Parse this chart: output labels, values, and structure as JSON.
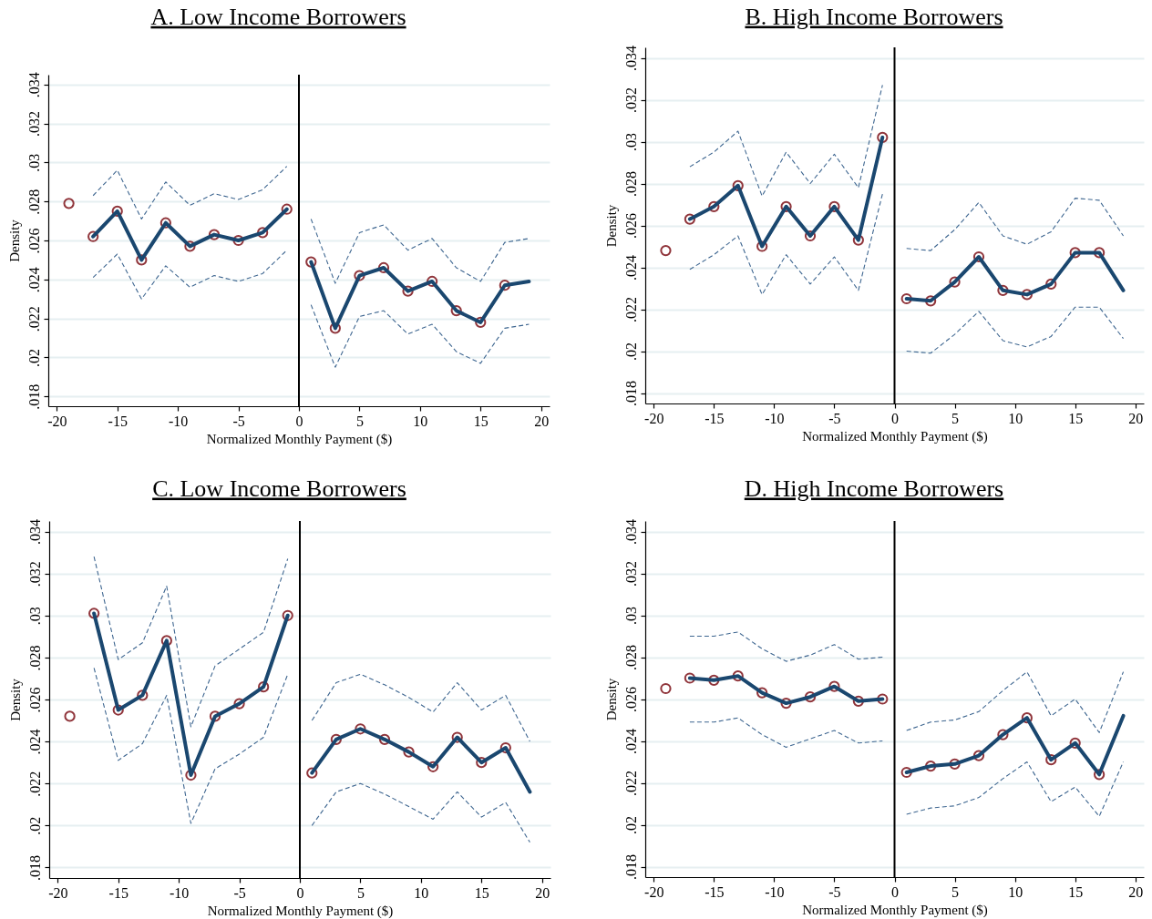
{
  "chart_data": [
    {
      "type": "line",
      "title": "A. Low Income Borrowers",
      "xlabel": "Normalized Monthly Payment ($)",
      "ylabel": "Density",
      "xlim": [
        -20.7,
        20.7
      ],
      "ylim": [
        0.0175,
        0.0345
      ],
      "xticks": [
        -20,
        -15,
        -10,
        -5,
        0,
        5,
        10,
        15,
        20
      ],
      "yticks": [
        {
          "value": 0.018,
          "label": ".018"
        },
        {
          "value": 0.02,
          "label": ".02"
        },
        {
          "value": 0.022,
          "label": ".022"
        },
        {
          "value": 0.024,
          "label": ".024"
        },
        {
          "value": 0.026,
          "label": ".026"
        },
        {
          "value": 0.028,
          "label": ".028"
        },
        {
          "value": 0.03,
          "label": ".03"
        },
        {
          "value": 0.032,
          "label": ".032"
        },
        {
          "value": 0.034,
          "label": ".034"
        }
      ],
      "grid": "y",
      "ref_lines": [
        {
          "axis": "x",
          "value": 0,
          "color": "#000000"
        }
      ],
      "series": [
        {
          "type": "scatter",
          "marker": "circle",
          "color": "#90353b",
          "x": [
            -19,
            -17,
            -15,
            -13,
            -11,
            -9,
            -7,
            -5,
            -3,
            -1,
            1,
            3,
            5,
            7,
            9,
            11,
            13,
            15,
            17
          ],
          "values": [
            0.0279,
            0.0262,
            0.0275,
            0.025,
            0.0269,
            0.0257,
            0.0263,
            0.026,
            0.0264,
            0.0276,
            0.0249,
            0.0215,
            0.0242,
            0.0246,
            0.0234,
            0.0239,
            0.0224,
            0.0218,
            0.0237
          ]
        },
        {
          "type": "line",
          "color": "#1a476f",
          "x": [
            -17,
            -15,
            -13,
            -11,
            -9,
            -7,
            -5,
            -3,
            -1
          ],
          "values": [
            0.0262,
            0.0275,
            0.025,
            0.0269,
            0.0257,
            0.0263,
            0.026,
            0.0264,
            0.0276
          ]
        },
        {
          "type": "line",
          "color": "#1a476f",
          "x": [
            1,
            3,
            5,
            7,
            9,
            11,
            13,
            15,
            17,
            19
          ],
          "values": [
            0.0249,
            0.0215,
            0.0242,
            0.0246,
            0.0234,
            0.0239,
            0.0224,
            0.0218,
            0.0237,
            0.0239
          ]
        },
        {
          "type": "line",
          "line_style": "dashed",
          "color": "#3e6690",
          "x": [
            -17,
            -15,
            -13,
            -11,
            -9,
            -7,
            -5,
            -3,
            -1
          ],
          "values": [
            0.0283,
            0.0296,
            0.0271,
            0.029,
            0.0278,
            0.0284,
            0.0281,
            0.0286,
            0.0298
          ]
        },
        {
          "type": "line",
          "line_style": "dashed",
          "color": "#3e6690",
          "x": [
            -17,
            -15,
            -13,
            -11,
            -9,
            -7,
            -5,
            -3,
            -1
          ],
          "values": [
            0.0241,
            0.0253,
            0.023,
            0.0247,
            0.0236,
            0.0242,
            0.0239,
            0.0243,
            0.0255
          ]
        },
        {
          "type": "line",
          "line_style": "dashed",
          "color": "#3e6690",
          "x": [
            1,
            3,
            5,
            7,
            9,
            11,
            13,
            15,
            17,
            19
          ],
          "values": [
            0.0271,
            0.0238,
            0.0264,
            0.0268,
            0.0255,
            0.0261,
            0.0246,
            0.0239,
            0.0259,
            0.0261
          ]
        },
        {
          "type": "line",
          "line_style": "dashed",
          "color": "#3e6690",
          "x": [
            1,
            3,
            5,
            7,
            9,
            11,
            13,
            15,
            17,
            19
          ],
          "values": [
            0.0227,
            0.0195,
            0.0221,
            0.0224,
            0.0212,
            0.0217,
            0.0203,
            0.0197,
            0.0215,
            0.0217
          ]
        }
      ]
    },
    {
      "type": "line",
      "title": "B. High Income Borrowers",
      "xlabel": "Normalized Monthly Payment ($)",
      "ylabel": "Density",
      "xlim": [
        -20.7,
        20.7
      ],
      "ylim": [
        0.0175,
        0.0345
      ],
      "xticks": [
        -20,
        -15,
        -10,
        -5,
        0,
        5,
        10,
        15,
        20
      ],
      "yticks": [
        {
          "value": 0.018,
          "label": ".018"
        },
        {
          "value": 0.02,
          "label": ".02"
        },
        {
          "value": 0.022,
          "label": ".022"
        },
        {
          "value": 0.024,
          "label": ".024"
        },
        {
          "value": 0.026,
          "label": ".026"
        },
        {
          "value": 0.028,
          "label": ".028"
        },
        {
          "value": 0.03,
          "label": ".03"
        },
        {
          "value": 0.032,
          "label": ".032"
        },
        {
          "value": 0.034,
          "label": ".034"
        }
      ],
      "grid": "y",
      "ref_lines": [
        {
          "axis": "x",
          "value": 0,
          "color": "#000000"
        }
      ],
      "series": [
        {
          "type": "scatter",
          "marker": "circle",
          "color": "#90353b",
          "x": [
            -19,
            -17,
            -15,
            -13,
            -11,
            -9,
            -7,
            -5,
            -3,
            -1,
            1,
            3,
            5,
            7,
            9,
            11,
            13,
            15,
            17
          ],
          "values": [
            0.0248,
            0.0263,
            0.0269,
            0.0279,
            0.025,
            0.0269,
            0.0255,
            0.0269,
            0.0253,
            0.0302,
            0.0225,
            0.0224,
            0.0233,
            0.0245,
            0.0229,
            0.0227,
            0.0232,
            0.0247,
            0.0247
          ]
        },
        {
          "type": "line",
          "color": "#1a476f",
          "x": [
            -17,
            -15,
            -13,
            -11,
            -9,
            -7,
            -5,
            -3,
            -1
          ],
          "values": [
            0.0263,
            0.0269,
            0.0279,
            0.025,
            0.0269,
            0.0255,
            0.0269,
            0.0253,
            0.0302
          ]
        },
        {
          "type": "line",
          "color": "#1a476f",
          "x": [
            1,
            3,
            5,
            7,
            9,
            11,
            13,
            15,
            17,
            19
          ],
          "values": [
            0.0225,
            0.0224,
            0.0233,
            0.0245,
            0.0229,
            0.0227,
            0.0232,
            0.0247,
            0.0247,
            0.0229
          ]
        },
        {
          "type": "line",
          "line_style": "dashed",
          "color": "#3e6690",
          "x": [
            -17,
            -15,
            -13,
            -11,
            -9,
            -7,
            -5,
            -3,
            -1
          ],
          "values": [
            0.0288,
            0.0295,
            0.0305,
            0.0274,
            0.0295,
            0.028,
            0.0294,
            0.0278,
            0.0327
          ]
        },
        {
          "type": "line",
          "line_style": "dashed",
          "color": "#3e6690",
          "x": [
            -17,
            -15,
            -13,
            -11,
            -9,
            -7,
            -5,
            -3,
            -1
          ],
          "values": [
            0.0239,
            0.0246,
            0.0255,
            0.0227,
            0.0246,
            0.0232,
            0.0245,
            0.0229,
            0.0275
          ]
        },
        {
          "type": "line",
          "line_style": "dashed",
          "color": "#3e6690",
          "x": [
            1,
            3,
            5,
            7,
            9,
            11,
            13,
            15,
            17,
            19
          ],
          "values": [
            0.0249,
            0.0248,
            0.0258,
            0.0271,
            0.0255,
            0.0251,
            0.0257,
            0.0273,
            0.0272,
            0.0255
          ]
        },
        {
          "type": "line",
          "line_style": "dashed",
          "color": "#3e6690",
          "x": [
            1,
            3,
            5,
            7,
            9,
            11,
            13,
            15,
            17,
            19
          ],
          "values": [
            0.02,
            0.0199,
            0.0208,
            0.0219,
            0.0205,
            0.0202,
            0.0207,
            0.0221,
            0.0221,
            0.0206
          ]
        }
      ]
    },
    {
      "type": "line",
      "title": "C. Low Income Borrowers",
      "xlabel": "Normalized Monthly Payment ($)",
      "ylabel": "Density",
      "xlim": [
        -20.7,
        20.7
      ],
      "ylim": [
        0.0175,
        0.0345
      ],
      "xticks": [
        -20,
        -15,
        -10,
        -5,
        0,
        5,
        10,
        15,
        20
      ],
      "yticks": [
        {
          "value": 0.018,
          "label": ".018"
        },
        {
          "value": 0.02,
          "label": ".02"
        },
        {
          "value": 0.022,
          "label": ".022"
        },
        {
          "value": 0.024,
          "label": ".024"
        },
        {
          "value": 0.026,
          "label": ".026"
        },
        {
          "value": 0.028,
          "label": ".028"
        },
        {
          "value": 0.03,
          "label": ".03"
        },
        {
          "value": 0.032,
          "label": ".032"
        },
        {
          "value": 0.034,
          "label": ".034"
        }
      ],
      "grid": "y",
      "ref_lines": [
        {
          "axis": "x",
          "value": 0,
          "color": "#000000"
        }
      ],
      "series": [
        {
          "type": "scatter",
          "marker": "circle",
          "color": "#90353b",
          "x": [
            -19,
            -17,
            -15,
            -13,
            -11,
            -9,
            -7,
            -5,
            -3,
            -1,
            1,
            3,
            5,
            7,
            9,
            11,
            13,
            15,
            17
          ],
          "values": [
            0.0252,
            0.0301,
            0.0255,
            0.0262,
            0.0288,
            0.0224,
            0.0252,
            0.0258,
            0.0266,
            0.03,
            0.0225,
            0.0241,
            0.0246,
            0.0241,
            0.0235,
            0.0228,
            0.0242,
            0.023,
            0.0237
          ]
        },
        {
          "type": "line",
          "color": "#1a476f",
          "x": [
            -17,
            -15,
            -13,
            -11,
            -9,
            -7,
            -5,
            -3,
            -1
          ],
          "values": [
            0.0301,
            0.0255,
            0.0262,
            0.0288,
            0.0224,
            0.0252,
            0.0258,
            0.0266,
            0.03
          ]
        },
        {
          "type": "line",
          "color": "#1a476f",
          "x": [
            1,
            3,
            5,
            7,
            9,
            11,
            13,
            15,
            17,
            19
          ],
          "values": [
            0.0225,
            0.0241,
            0.0246,
            0.0241,
            0.0235,
            0.0228,
            0.0242,
            0.023,
            0.0237,
            0.0216
          ]
        },
        {
          "type": "line",
          "line_style": "dashed",
          "color": "#3e6690",
          "x": [
            -17,
            -15,
            -13,
            -11,
            -9,
            -7,
            -5,
            -3,
            -1
          ],
          "values": [
            0.0328,
            0.0279,
            0.0287,
            0.0314,
            0.0247,
            0.0276,
            0.0284,
            0.0292,
            0.0327
          ]
        },
        {
          "type": "line",
          "line_style": "dashed",
          "color": "#3e6690",
          "x": [
            -17,
            -15,
            -13,
            -11,
            -9,
            -7,
            -5,
            -3,
            -1
          ],
          "values": [
            0.0275,
            0.0231,
            0.0239,
            0.0262,
            0.0201,
            0.0227,
            0.0234,
            0.0242,
            0.0272
          ]
        },
        {
          "type": "line",
          "line_style": "dashed",
          "color": "#3e6690",
          "x": [
            1,
            3,
            5,
            7,
            9,
            11,
            13,
            15,
            17,
            19
          ],
          "values": [
            0.025,
            0.0268,
            0.0272,
            0.0267,
            0.0261,
            0.0254,
            0.0268,
            0.0255,
            0.0262,
            0.024
          ]
        },
        {
          "type": "line",
          "line_style": "dashed",
          "color": "#3e6690",
          "x": [
            1,
            3,
            5,
            7,
            9,
            11,
            13,
            15,
            17,
            19
          ],
          "values": [
            0.02,
            0.0216,
            0.022,
            0.0215,
            0.0209,
            0.0203,
            0.0216,
            0.0204,
            0.0211,
            0.0192
          ]
        }
      ]
    },
    {
      "type": "line",
      "title": "D. High Income Borrowers",
      "xlabel": "Normalized Monthly Payment ($)",
      "ylabel": "Density",
      "xlim": [
        -20.7,
        20.7
      ],
      "ylim": [
        0.0175,
        0.0345
      ],
      "xticks": [
        -20,
        -15,
        -10,
        -5,
        0,
        5,
        10,
        15,
        20
      ],
      "yticks": [
        {
          "value": 0.018,
          "label": ".018"
        },
        {
          "value": 0.02,
          "label": ".02"
        },
        {
          "value": 0.022,
          "label": ".022"
        },
        {
          "value": 0.024,
          "label": ".024"
        },
        {
          "value": 0.026,
          "label": ".026"
        },
        {
          "value": 0.028,
          "label": ".028"
        },
        {
          "value": 0.03,
          "label": ".03"
        },
        {
          "value": 0.032,
          "label": ".032"
        },
        {
          "value": 0.034,
          "label": ".034"
        }
      ],
      "grid": "y",
      "ref_lines": [
        {
          "axis": "x",
          "value": 0,
          "color": "#000000"
        }
      ],
      "series": [
        {
          "type": "scatter",
          "marker": "circle",
          "color": "#90353b",
          "x": [
            -19,
            -17,
            -15,
            -13,
            -11,
            -9,
            -7,
            -5,
            -3,
            -1,
            1,
            3,
            5,
            7,
            9,
            11,
            13,
            15,
            17
          ],
          "values": [
            0.0265,
            0.027,
            0.0269,
            0.0271,
            0.0263,
            0.0258,
            0.0261,
            0.0266,
            0.0259,
            0.026,
            0.0225,
            0.0228,
            0.0229,
            0.0233,
            0.0243,
            0.0251,
            0.0231,
            0.0239,
            0.0224
          ]
        },
        {
          "type": "line",
          "color": "#1a476f",
          "x": [
            -17,
            -15,
            -13,
            -11,
            -9,
            -7,
            -5,
            -3,
            -1
          ],
          "values": [
            0.027,
            0.0269,
            0.0271,
            0.0263,
            0.0258,
            0.0261,
            0.0266,
            0.0259,
            0.026
          ]
        },
        {
          "type": "line",
          "color": "#1a476f",
          "x": [
            1,
            3,
            5,
            7,
            9,
            11,
            13,
            15,
            17,
            19
          ],
          "values": [
            0.0225,
            0.0228,
            0.0229,
            0.0233,
            0.0243,
            0.0251,
            0.0231,
            0.0239,
            0.0224,
            0.0252
          ]
        },
        {
          "type": "line",
          "line_style": "dashed",
          "color": "#3e6690",
          "x": [
            -17,
            -15,
            -13,
            -11,
            -9,
            -7,
            -5,
            -3,
            -1
          ],
          "values": [
            0.029,
            0.029,
            0.0292,
            0.0284,
            0.0278,
            0.0281,
            0.0286,
            0.0279,
            0.028
          ]
        },
        {
          "type": "line",
          "line_style": "dashed",
          "color": "#3e6690",
          "x": [
            -17,
            -15,
            -13,
            -11,
            -9,
            -7,
            -5,
            -3,
            -1
          ],
          "values": [
            0.0249,
            0.0249,
            0.0251,
            0.0243,
            0.0237,
            0.0241,
            0.0245,
            0.0239,
            0.024
          ]
        },
        {
          "type": "line",
          "line_style": "dashed",
          "color": "#3e6690",
          "x": [
            1,
            3,
            5,
            7,
            9,
            11,
            13,
            15,
            17,
            19
          ],
          "values": [
            0.0245,
            0.0249,
            0.025,
            0.0254,
            0.0264,
            0.0273,
            0.0252,
            0.026,
            0.0244,
            0.0273
          ]
        },
        {
          "type": "line",
          "line_style": "dashed",
          "color": "#3e6690",
          "x": [
            1,
            3,
            5,
            7,
            9,
            11,
            13,
            15,
            17,
            19
          ],
          "values": [
            0.0205,
            0.0208,
            0.0209,
            0.0213,
            0.0222,
            0.023,
            0.0211,
            0.0218,
            0.0204,
            0.023
          ]
        }
      ]
    }
  ]
}
